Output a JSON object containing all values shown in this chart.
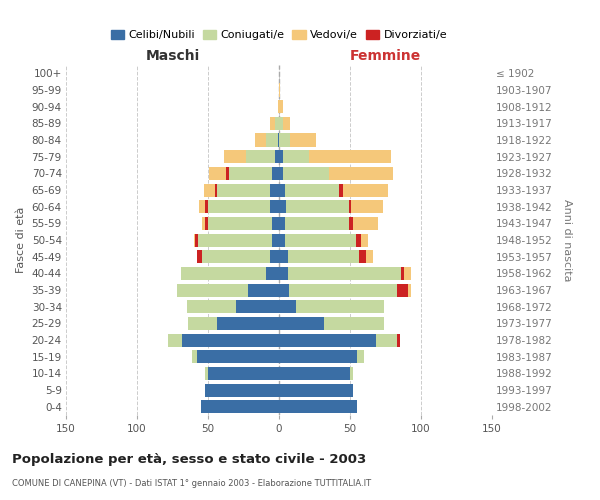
{
  "age_groups": [
    "0-4",
    "5-9",
    "10-14",
    "15-19",
    "20-24",
    "25-29",
    "30-34",
    "35-39",
    "40-44",
    "45-49",
    "50-54",
    "55-59",
    "60-64",
    "65-69",
    "70-74",
    "75-79",
    "80-84",
    "85-89",
    "90-94",
    "95-99",
    "100+"
  ],
  "birth_years": [
    "1998-2002",
    "1993-1997",
    "1988-1992",
    "1983-1987",
    "1978-1982",
    "1973-1977",
    "1968-1972",
    "1963-1967",
    "1958-1962",
    "1953-1957",
    "1948-1952",
    "1943-1947",
    "1938-1942",
    "1933-1937",
    "1928-1932",
    "1923-1927",
    "1918-1922",
    "1913-1917",
    "1908-1912",
    "1903-1907",
    "≤ 1902"
  ],
  "maschi_celibi": [
    55,
    52,
    50,
    58,
    68,
    44,
    30,
    22,
    9,
    6,
    5,
    5,
    6,
    6,
    5,
    3,
    1,
    0,
    0,
    0,
    0
  ],
  "maschi_coniugati": [
    0,
    0,
    2,
    3,
    10,
    20,
    35,
    50,
    60,
    48,
    52,
    45,
    44,
    38,
    30,
    20,
    8,
    3,
    0,
    0,
    0
  ],
  "maschi_vedovi": [
    0,
    0,
    0,
    0,
    0,
    0,
    0,
    0,
    0,
    0,
    1,
    2,
    4,
    8,
    12,
    16,
    8,
    3,
    1,
    0,
    0
  ],
  "maschi_divorziati": [
    0,
    0,
    0,
    0,
    0,
    0,
    0,
    0,
    0,
    4,
    2,
    2,
    2,
    1,
    2,
    0,
    0,
    0,
    0,
    0,
    0
  ],
  "femmine_nubili": [
    55,
    52,
    50,
    55,
    68,
    32,
    12,
    7,
    6,
    6,
    4,
    4,
    5,
    4,
    3,
    3,
    0,
    0,
    0,
    0,
    0
  ],
  "femmine_coniugate": [
    0,
    0,
    2,
    5,
    15,
    42,
    62,
    76,
    80,
    50,
    50,
    45,
    44,
    38,
    32,
    18,
    8,
    3,
    0,
    0,
    0
  ],
  "femmine_vedove": [
    0,
    0,
    0,
    0,
    0,
    0,
    0,
    2,
    5,
    5,
    5,
    18,
    22,
    32,
    45,
    58,
    18,
    5,
    3,
    1,
    0
  ],
  "femmine_divorziate": [
    0,
    0,
    0,
    0,
    2,
    0,
    0,
    8,
    2,
    5,
    4,
    3,
    2,
    3,
    0,
    0,
    0,
    0,
    0,
    0,
    0
  ],
  "color_celibi": "#3a6ea5",
  "color_coniugati": "#c5d9a0",
  "color_vedovi": "#f5c87a",
  "color_divorziati": "#cc2222",
  "title": "Popolazione per età, sesso e stato civile - 2003",
  "subtitle": "COMUNE DI CANEPINA (VT) - Dati ISTAT 1° gennaio 2003 - Elaborazione TUTTITALIA.IT",
  "label_maschi": "Maschi",
  "label_femmine": "Femmine",
  "ylabel_left": "Fasce di età",
  "ylabel_right": "Anni di nascita",
  "legend_labels": [
    "Celibi/Nubili",
    "Coniugati/e",
    "Vedovi/e",
    "Divorziati/e"
  ],
  "xlim": 150,
  "bg_color": "#ffffff",
  "grid_color": "#cccccc"
}
